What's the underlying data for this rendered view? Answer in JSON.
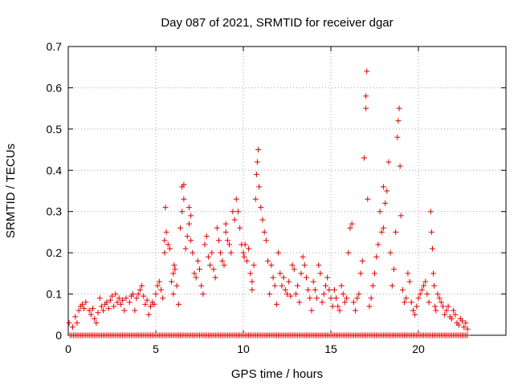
{
  "chart_data": {
    "type": "scatter",
    "title": "Day 087 of 2021, SRMTID for receiver dgar",
    "xlabel": "GPS time / hours",
    "ylabel": "SRMTID / TECUs",
    "xlim": [
      0,
      25
    ],
    "ylim": [
      0,
      0.7
    ],
    "xticks": [
      0,
      5,
      10,
      15,
      20
    ],
    "yticks": [
      0,
      0.1,
      0.2,
      0.3,
      0.4,
      0.5,
      0.6,
      0.7
    ],
    "xtick_labels": [
      "0",
      "5",
      "10",
      "15",
      "20"
    ],
    "ytick_labels": [
      "0",
      "0.1",
      "0.2",
      "0.3",
      "0.4",
      "0.5",
      "0.6",
      "0.7"
    ],
    "grid": true,
    "marker": "plus",
    "series": [
      {
        "name": "SRMTID",
        "color": "#e00000",
        "points": [
          [
            0.05,
            0.03
          ],
          [
            0.25,
            0.02
          ],
          [
            0.4,
            0.045
          ],
          [
            0.5,
            0.03
          ],
          [
            0.6,
            0.06
          ],
          [
            0.7,
            0.07
          ],
          [
            0.8,
            0.075
          ],
          [
            0.9,
            0.065
          ],
          [
            1.0,
            0.08
          ],
          [
            1.2,
            0.06
          ],
          [
            1.3,
            0.05
          ],
          [
            1.4,
            0.065
          ],
          [
            1.5,
            0.04
          ],
          [
            1.6,
            0.03
          ],
          [
            1.7,
            0.055
          ],
          [
            1.8,
            0.09
          ],
          [
            1.9,
            0.07
          ],
          [
            2.0,
            0.06
          ],
          [
            2.1,
            0.075
          ],
          [
            2.2,
            0.08
          ],
          [
            2.3,
            0.065
          ],
          [
            2.4,
            0.085
          ],
          [
            2.5,
            0.095
          ],
          [
            2.6,
            0.07
          ],
          [
            2.7,
            0.1
          ],
          [
            2.8,
            0.08
          ],
          [
            2.9,
            0.09
          ],
          [
            3.0,
            0.075
          ],
          [
            3.1,
            0.085
          ],
          [
            3.2,
            0.06
          ],
          [
            3.3,
            0.09
          ],
          [
            3.5,
            0.08
          ],
          [
            3.6,
            0.095
          ],
          [
            3.7,
            0.1
          ],
          [
            3.8,
            0.06
          ],
          [
            3.9,
            0.09
          ],
          [
            4.0,
            0.1
          ],
          [
            4.1,
            0.11
          ],
          [
            4.2,
            0.12
          ],
          [
            4.3,
            0.095
          ],
          [
            4.4,
            0.075
          ],
          [
            4.5,
            0.085
          ],
          [
            4.6,
            0.05
          ],
          [
            4.7,
            0.07
          ],
          [
            4.8,
            0.08
          ],
          [
            4.9,
            0.075
          ],
          [
            5.0,
            0.1
          ],
          [
            5.1,
            0.12
          ],
          [
            5.2,
            0.13
          ],
          [
            5.3,
            0.11
          ],
          [
            5.4,
            0.09
          ],
          [
            5.5,
            0.2
          ],
          [
            5.5,
            0.23
          ],
          [
            5.55,
            0.31
          ],
          [
            5.6,
            0.25
          ],
          [
            5.7,
            0.22
          ],
          [
            5.8,
            0.21
          ],
          [
            5.9,
            0.13
          ],
          [
            6.0,
            0.1
          ],
          [
            6.0,
            0.15
          ],
          [
            6.05,
            0.17
          ],
          [
            6.1,
            0.16
          ],
          [
            6.2,
            0.12
          ],
          [
            6.3,
            0.075
          ],
          [
            6.4,
            0.26
          ],
          [
            6.5,
            0.3
          ],
          [
            6.5,
            0.36
          ],
          [
            6.6,
            0.365
          ],
          [
            6.6,
            0.33
          ],
          [
            6.7,
            0.21
          ],
          [
            6.8,
            0.24
          ],
          [
            6.9,
            0.31
          ],
          [
            6.9,
            0.27
          ],
          [
            7.0,
            0.29
          ],
          [
            7.0,
            0.23
          ],
          [
            7.1,
            0.2
          ],
          [
            7.2,
            0.15
          ],
          [
            7.3,
            0.14
          ],
          [
            7.4,
            0.18
          ],
          [
            7.5,
            0.16
          ],
          [
            7.6,
            0.12
          ],
          [
            7.7,
            0.1
          ],
          [
            7.8,
            0.22
          ],
          [
            7.9,
            0.24
          ],
          [
            8.0,
            0.19
          ],
          [
            8.1,
            0.17
          ],
          [
            8.2,
            0.2
          ],
          [
            8.3,
            0.16
          ],
          [
            8.4,
            0.14
          ],
          [
            8.5,
            0.26
          ],
          [
            8.6,
            0.23
          ],
          [
            8.7,
            0.2
          ],
          [
            8.8,
            0.18
          ],
          [
            8.9,
            0.17
          ],
          [
            9.0,
            0.27
          ],
          [
            9.0,
            0.25
          ],
          [
            9.1,
            0.23
          ],
          [
            9.2,
            0.22
          ],
          [
            9.3,
            0.2
          ],
          [
            9.4,
            0.3
          ],
          [
            9.5,
            0.28
          ],
          [
            9.6,
            0.33
          ],
          [
            9.7,
            0.3
          ],
          [
            9.8,
            0.26
          ],
          [
            9.9,
            0.22
          ],
          [
            10.0,
            0.2
          ],
          [
            10.05,
            0.19
          ],
          [
            10.1,
            0.22
          ],
          [
            10.2,
            0.18
          ],
          [
            10.3,
            0.21
          ],
          [
            10.4,
            0.15
          ],
          [
            10.5,
            0.13
          ],
          [
            10.5,
            0.11
          ],
          [
            10.6,
            0.17
          ],
          [
            10.7,
            0.33
          ],
          [
            10.75,
            0.39
          ],
          [
            10.8,
            0.42
          ],
          [
            10.85,
            0.45
          ],
          [
            10.9,
            0.36
          ],
          [
            11.0,
            0.31
          ],
          [
            11.1,
            0.28
          ],
          [
            11.2,
            0.25
          ],
          [
            11.3,
            0.23
          ],
          [
            11.4,
            0.18
          ],
          [
            11.5,
            0.1
          ],
          [
            11.6,
            0.17
          ],
          [
            11.7,
            0.14
          ],
          [
            11.8,
            0.12
          ],
          [
            11.9,
            0.075
          ],
          [
            12.0,
            0.2
          ],
          [
            12.1,
            0.15
          ],
          [
            12.2,
            0.12
          ],
          [
            12.3,
            0.14
          ],
          [
            12.4,
            0.11
          ],
          [
            12.5,
            0.1
          ],
          [
            12.6,
            0.13
          ],
          [
            12.7,
            0.095
          ],
          [
            12.8,
            0.17
          ],
          [
            12.9,
            0.16
          ],
          [
            13.0,
            0.1
          ],
          [
            13.1,
            0.12
          ],
          [
            13.2,
            0.08
          ],
          [
            13.3,
            0.15
          ],
          [
            13.4,
            0.19
          ],
          [
            13.5,
            0.17
          ],
          [
            13.6,
            0.14
          ],
          [
            13.7,
            0.11
          ],
          [
            13.8,
            0.09
          ],
          [
            13.9,
            0.06
          ],
          [
            14.0,
            0.13
          ],
          [
            14.1,
            0.11
          ],
          [
            14.2,
            0.09
          ],
          [
            14.3,
            0.17
          ],
          [
            14.4,
            0.15
          ],
          [
            14.5,
            0.08
          ],
          [
            14.6,
            0.1
          ],
          [
            14.7,
            0.12
          ],
          [
            14.8,
            0.14
          ],
          [
            14.9,
            0.11
          ],
          [
            15.0,
            0.09
          ],
          [
            15.1,
            0.07
          ],
          [
            15.2,
            0.11
          ],
          [
            15.3,
            0.09
          ],
          [
            15.4,
            0.07
          ],
          [
            15.5,
            0.06
          ],
          [
            15.6,
            0.12
          ],
          [
            15.7,
            0.1
          ],
          [
            15.8,
            0.08
          ],
          [
            15.9,
            0.09
          ],
          [
            16.0,
            0.2
          ],
          [
            16.1,
            0.26
          ],
          [
            16.2,
            0.27
          ],
          [
            16.3,
            0.08
          ],
          [
            16.4,
            0.06
          ],
          [
            16.5,
            0.09
          ],
          [
            16.6,
            0.1
          ],
          [
            16.7,
            0.15
          ],
          [
            16.8,
            0.18
          ],
          [
            16.9,
            0.43
          ],
          [
            17.0,
            0.55
          ],
          [
            17.0,
            0.58
          ],
          [
            17.05,
            0.64
          ],
          [
            17.1,
            0.33
          ],
          [
            17.2,
            0.07
          ],
          [
            17.3,
            0.09
          ],
          [
            17.4,
            0.12
          ],
          [
            17.5,
            0.15
          ],
          [
            17.6,
            0.19
          ],
          [
            17.7,
            0.22
          ],
          [
            17.8,
            0.3
          ],
          [
            17.9,
            0.25
          ],
          [
            18.0,
            0.36
          ],
          [
            18.0,
            0.26
          ],
          [
            18.1,
            0.32
          ],
          [
            18.2,
            0.35
          ],
          [
            18.3,
            0.42
          ],
          [
            18.4,
            0.2
          ],
          [
            18.5,
            0.12
          ],
          [
            18.6,
            0.16
          ],
          [
            18.7,
            0.25
          ],
          [
            18.8,
            0.48
          ],
          [
            18.85,
            0.52
          ],
          [
            18.9,
            0.55
          ],
          [
            18.95,
            0.41
          ],
          [
            19.0,
            0.29
          ],
          [
            19.1,
            0.11
          ],
          [
            19.2,
            0.08
          ],
          [
            19.3,
            0.09
          ],
          [
            19.4,
            0.15
          ],
          [
            19.5,
            0.13
          ],
          [
            19.6,
            0.08
          ],
          [
            19.7,
            0.06
          ],
          [
            19.8,
            0.05
          ],
          [
            19.9,
            0.07
          ],
          [
            20.0,
            0.09
          ],
          [
            20.1,
            0.1
          ],
          [
            20.2,
            0.11
          ],
          [
            20.3,
            0.12
          ],
          [
            20.4,
            0.13
          ],
          [
            20.5,
            0.1
          ],
          [
            20.6,
            0.08
          ],
          [
            20.7,
            0.3
          ],
          [
            20.75,
            0.25
          ],
          [
            20.8,
            0.21
          ],
          [
            20.85,
            0.15
          ],
          [
            20.9,
            0.12
          ],
          [
            20.95,
            0.07
          ],
          [
            21.0,
            0.06
          ],
          [
            21.1,
            0.1
          ],
          [
            21.2,
            0.09
          ],
          [
            21.3,
            0.08
          ],
          [
            21.4,
            0.07
          ],
          [
            21.5,
            0.05
          ],
          [
            21.6,
            0.06
          ],
          [
            21.7,
            0.07
          ],
          [
            21.8,
            0.045
          ],
          [
            21.9,
            0.04
          ],
          [
            22.0,
            0.06
          ],
          [
            22.1,
            0.05
          ],
          [
            22.2,
            0.03
          ],
          [
            22.3,
            0.025
          ],
          [
            22.4,
            0.04
          ],
          [
            22.5,
            0.035
          ],
          [
            22.6,
            0.02
          ],
          [
            22.7,
            0.03
          ],
          [
            22.8,
            0.015
          ]
        ],
        "baseline_points": {
          "y": 0,
          "x_start": 0.1,
          "x_end": 22.8,
          "x_step": 0.1
        }
      }
    ]
  }
}
